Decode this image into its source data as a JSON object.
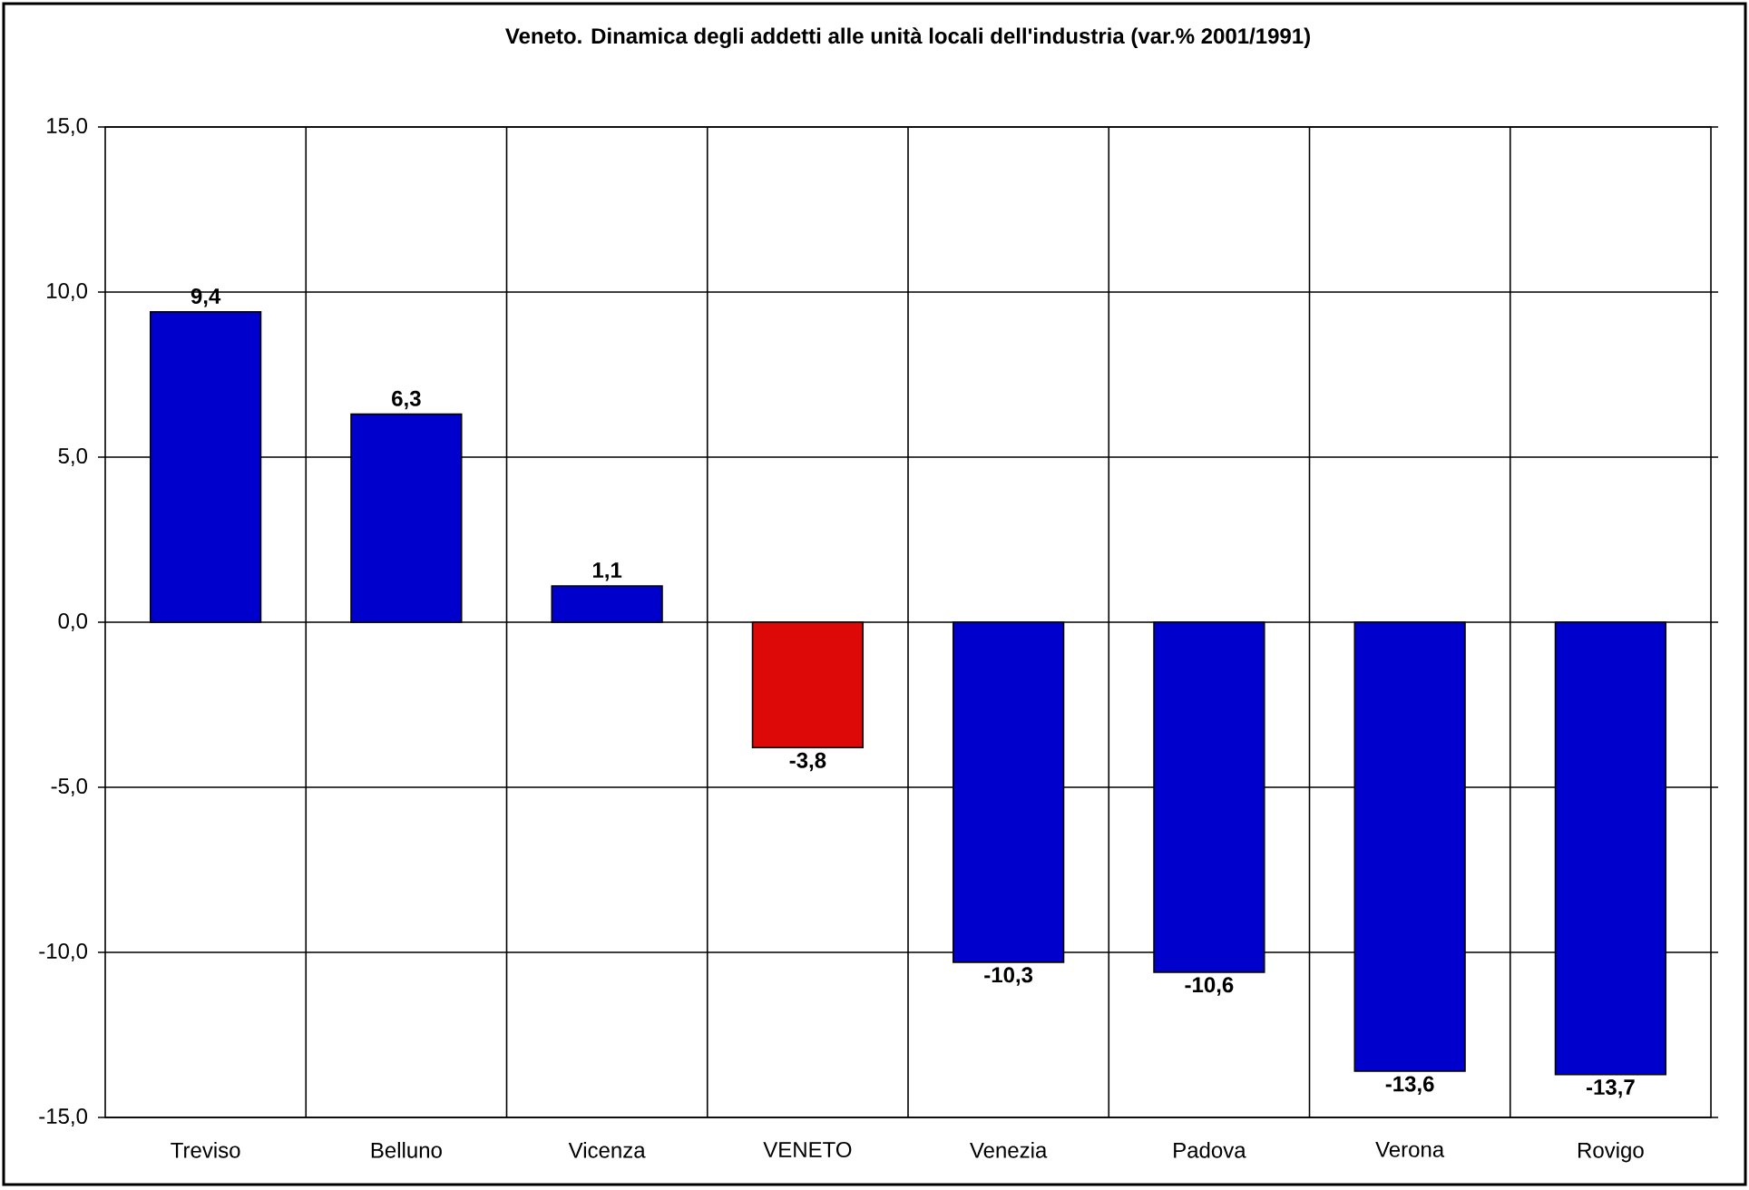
{
  "chart_data": {
    "type": "bar",
    "title": "Veneto. Dinamica degli addetti alle unità locali dell'industria (var.% 2001/1991)",
    "categories": [
      "Treviso",
      "Belluno",
      "Vicenza",
      "VENETO",
      "Venezia",
      "Padova",
      "Verona",
      "Rovigo"
    ],
    "values": [
      9.4,
      6.3,
      1.1,
      -3.8,
      -10.3,
      -10.6,
      -13.6,
      -13.7
    ],
    "colors": [
      "#0000cc",
      "#0000cc",
      "#0000cc",
      "#dd0808",
      "#0000cc",
      "#0000cc",
      "#0000cc",
      "#0000cc"
    ],
    "value_labels": [
      "9,4",
      "6,3",
      "1,1",
      "-3,8",
      "-10,3",
      "-10,6",
      "-13,6",
      "-13,7"
    ],
    "ylim": [
      -15,
      15
    ],
    "yticks": [
      {
        "value": -15,
        "label": "-15,0"
      },
      {
        "value": -10,
        "label": "-10,0"
      },
      {
        "value": -5,
        "label": "-5,0"
      },
      {
        "value": 0,
        "label": "0,0"
      },
      {
        "value": 5,
        "label": "5,0"
      },
      {
        "value": 10,
        "label": "10,0"
      },
      {
        "value": 15,
        "label": "15,0"
      }
    ],
    "grid": true
  }
}
